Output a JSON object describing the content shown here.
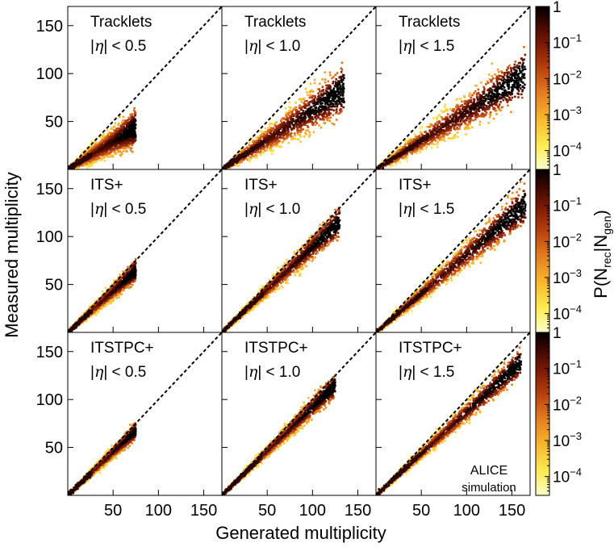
{
  "figure": {
    "xlabel": "Generated multiplicity",
    "ylabel": "Measured multiplicity",
    "colorbar_label": {
      "main": "P(N",
      "sub1": "rec",
      "mid": "|N",
      "sub2": "gen",
      "end": ")"
    },
    "watermark": {
      "line1": "ALICE",
      "line2": "simulation"
    }
  },
  "chart_data": {
    "type": "heatmap",
    "layout": {
      "rows": 3,
      "cols": 3
    },
    "xlim": [
      0,
      170
    ],
    "ylim": [
      0,
      170
    ],
    "x_ticks": [
      "50",
      "100",
      "150"
    ],
    "y_ticks": [
      "50",
      "100",
      "150"
    ],
    "diagonal": "y = x (dashed)",
    "colorbar": {
      "scale": "log",
      "range": [
        3e-05,
        1
      ],
      "ticks": [
        {
          "label": "1",
          "exp": ""
        },
        {
          "label": "10",
          "exp": "−1"
        },
        {
          "label": "10",
          "exp": "−2"
        },
        {
          "label": "10",
          "exp": "−3"
        },
        {
          "label": "10",
          "exp": "−4"
        }
      ],
      "colors": [
        "#ffffcc",
        "#ffeb50",
        "#f7b32b",
        "#e07a1f",
        "#b8400e",
        "#7a1a04",
        "#3a0700",
        "#000000"
      ]
    },
    "panels": [
      {
        "row": 0,
        "col": 0,
        "method": "Tracklets",
        "eta": "< 0.5",
        "slope": 0.58,
        "xmax": 75,
        "spread": 0.2
      },
      {
        "row": 0,
        "col": 1,
        "method": "Tracklets",
        "eta": "< 1.0",
        "slope": 0.62,
        "xmax": 135,
        "spread": 0.18
      },
      {
        "row": 0,
        "col": 2,
        "method": "Tracklets",
        "eta": "< 1.5",
        "slope": 0.6,
        "xmax": 165,
        "spread": 0.16
      },
      {
        "row": 1,
        "col": 0,
        "method": "ITS+",
        "eta": "< 0.5",
        "slope": 0.86,
        "xmax": 75,
        "spread": 0.12
      },
      {
        "row": 1,
        "col": 1,
        "method": "ITS+",
        "eta": "< 1.0",
        "slope": 0.89,
        "xmax": 130,
        "spread": 0.11
      },
      {
        "row": 1,
        "col": 2,
        "method": "ITS+",
        "eta": "< 1.5",
        "slope": 0.81,
        "xmax": 165,
        "spread": 0.12
      },
      {
        "row": 2,
        "col": 0,
        "method": "ITSTPC+",
        "eta": "< 0.5",
        "slope": 0.9,
        "xmax": 75,
        "spread": 0.09
      },
      {
        "row": 2,
        "col": 1,
        "method": "ITSTPC+",
        "eta": "< 1.0",
        "slope": 0.92,
        "xmax": 125,
        "spread": 0.09
      },
      {
        "row": 2,
        "col": 2,
        "method": "ITSTPC+",
        "eta": "< 1.5",
        "slope": 0.87,
        "xmax": 160,
        "spread": 0.09
      }
    ]
  }
}
